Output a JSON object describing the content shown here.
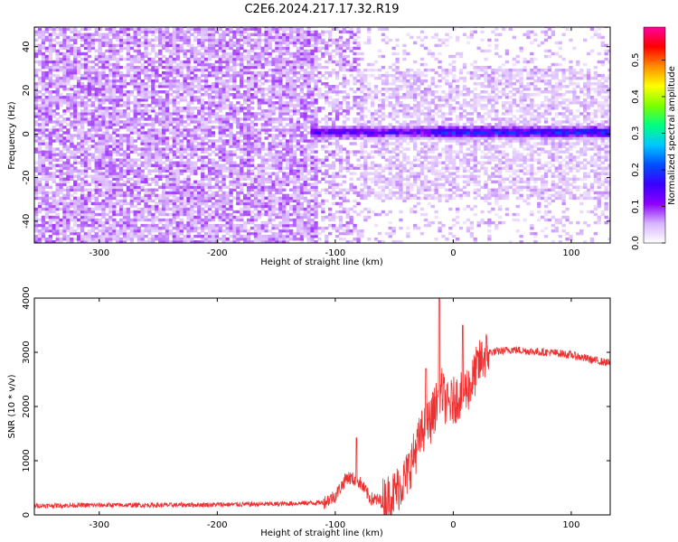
{
  "title": "C2E6.2024.217.17.32.R19",
  "chart_data": [
    {
      "type": "heatmap",
      "xlabel": "Height of straight line (km)",
      "ylabel": "Frequency (Hz)",
      "xlim": [
        -355,
        133
      ],
      "ylim": [
        -50,
        49
      ],
      "xticks": [
        -300,
        -200,
        -100,
        0,
        100
      ],
      "yticks": [
        -40,
        -20,
        0,
        20,
        40
      ],
      "colorbar": {
        "label": "Normalized spectral amplitude",
        "range": [
          0,
          0.59
        ],
        "ticks": [
          0.0,
          0.1,
          0.2,
          0.3,
          0.4,
          0.5
        ],
        "colors": [
          "#ffffff",
          "#d8b4ff",
          "#8b00ff",
          "#3a00ff",
          "#0050ff",
          "#00c8ff",
          "#00ff80",
          "#7dff00",
          "#ffff00",
          "#ff8c00",
          "#ff0000",
          "#ff00a0"
        ]
      },
      "features": {
        "noise_region": {
          "x_range": [
            -355,
            -115
          ],
          "freq_range": [
            -50,
            49
          ],
          "typical_amplitude": 0.06
        },
        "signal_line": {
          "x_range": [
            -120,
            133
          ],
          "freq_center": 1,
          "freq_width": 3,
          "peak_amplitude": 0.22
        },
        "sidebands": {
          "x_range": [
            -115,
            133
          ],
          "freq_range": [
            -30,
            30
          ],
          "typical_amplitude": 0.05
        }
      }
    },
    {
      "type": "line",
      "xlabel": "Height of straight line (km)",
      "ylabel": "SNR (10 * v/v)",
      "xlim": [
        -355,
        133
      ],
      "ylim": [
        0,
        4000
      ],
      "xticks": [
        -300,
        -200,
        -100,
        0,
        100
      ],
      "yticks": [
        0,
        1000,
        2000,
        3000,
        4000
      ],
      "color": "#ee3030",
      "x": [
        -355,
        -300,
        -250,
        -200,
        -150,
        -110,
        -100,
        -90,
        -80,
        -70,
        -60,
        -50,
        -40,
        -35,
        -30,
        -25,
        -20,
        -15,
        -10,
        -5,
        0,
        5,
        10,
        15,
        20,
        25,
        30,
        40,
        50,
        60,
        70,
        80,
        90,
        100,
        110,
        120,
        133
      ],
      "y": [
        170,
        180,
        180,
        190,
        200,
        230,
        350,
        700,
        620,
        300,
        250,
        400,
        700,
        1000,
        1300,
        1600,
        1700,
        2000,
        2300,
        2000,
        2100,
        2200,
        2300,
        2400,
        2700,
        2900,
        3000,
        3020,
        3050,
        3030,
        3010,
        3000,
        2980,
        2950,
        2900,
        2850,
        2800
      ],
      "spikes": [
        {
          "x": -82,
          "y": 1420
        },
        {
          "x": -12,
          "y": 4000
        },
        {
          "x": 8,
          "y": 3500
        },
        {
          "x": -23,
          "y": 2700
        }
      ]
    }
  ]
}
